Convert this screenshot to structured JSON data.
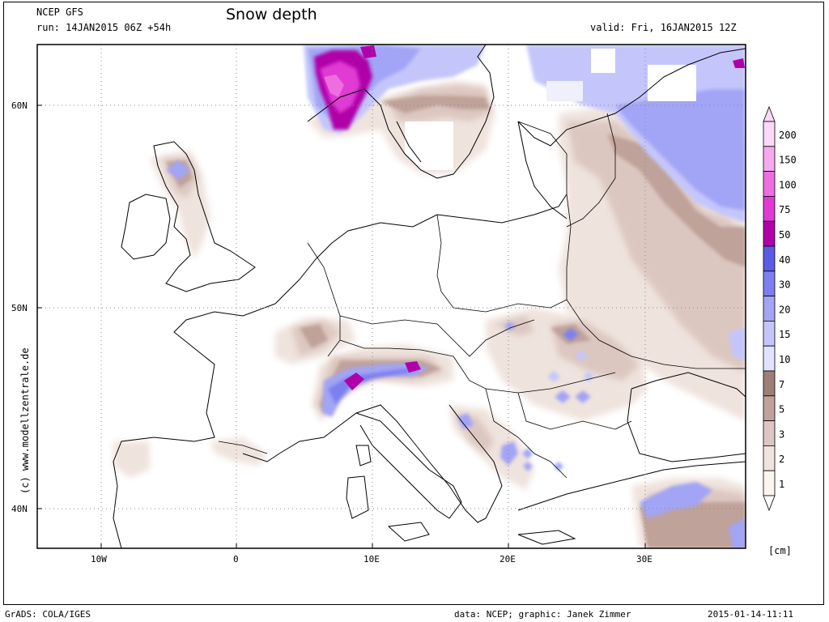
{
  "header": {
    "model": "NCEP GFS",
    "run": "run: 14JAN2015 06Z +54h",
    "title": "Snow depth",
    "valid": "valid: Fri, 16JAN2015 12Z"
  },
  "axes": {
    "lat_labels": [
      "60N",
      "50N",
      "40N"
    ],
    "lon_labels": [
      "10W",
      "0",
      "10E",
      "20E",
      "30E"
    ]
  },
  "colorbar": {
    "levels": [
      "200",
      "150",
      "100",
      "75",
      "50",
      "40",
      "30",
      "20",
      "15",
      "10",
      "7",
      "5",
      "3",
      "2",
      "1"
    ],
    "unit": "[cm]",
    "colors": [
      "#fbd8f6",
      "#f5a9ef",
      "#ee6ee2",
      "#e03ad3",
      "#b000a8",
      "#5a5ce6",
      "#7d7ff0",
      "#a2a4f5",
      "#c4c6fb",
      "#e1e2fd",
      "#9e7f76",
      "#bfa29a",
      "#dcc7c0",
      "#efe3dd",
      "#fbf5f1"
    ]
  },
  "watermark": "(c) www.modellzentrale.de",
  "footer": {
    "left": "GrADS: COLA/IGES",
    "center": "data: NCEP; graphic: Janek Zimmer",
    "right": "2015-01-14-11:11"
  }
}
